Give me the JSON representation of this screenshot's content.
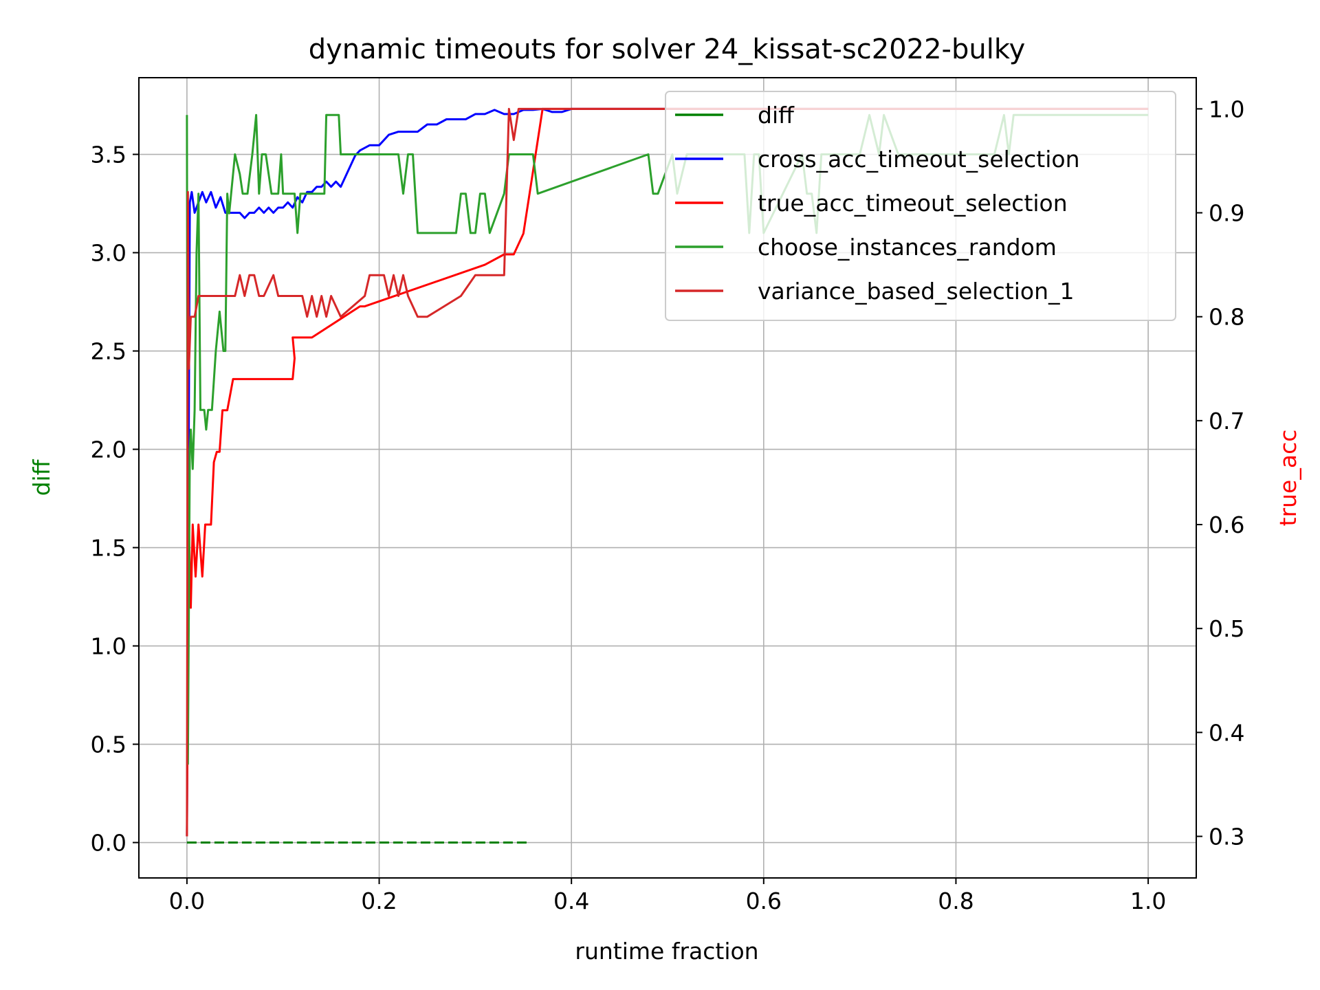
{
  "chart_data": {
    "type": "line",
    "title": "dynamic timeouts for solver 24_kissat-sc2022-bulky",
    "xlabel": "runtime fraction",
    "ylabel_left": "diff",
    "ylabel_right": "true_acc",
    "ylabel_left_color": "#008000",
    "ylabel_right_color": "#ff0000",
    "xlim": [
      -0.05,
      1.05
    ],
    "ylim_left": [
      -0.18,
      3.89
    ],
    "ylim_right": [
      0.26,
      1.03
    ],
    "x_ticks": [
      "0.0",
      "0.2",
      "0.4",
      "0.6",
      "0.8",
      "1.0"
    ],
    "y_left_ticks": [
      "0.0",
      "0.5",
      "1.0",
      "1.5",
      "2.0",
      "2.5",
      "3.0",
      "3.5"
    ],
    "y_right_ticks": [
      "0.3",
      "0.4",
      "0.5",
      "0.6",
      "0.7",
      "0.8",
      "0.9",
      "1.0"
    ],
    "grid": true,
    "legend_position": "top-right",
    "legend": [
      {
        "label": "diff",
        "color": "#008000"
      },
      {
        "label": "cross_acc_timeout_selection",
        "color": "#0000ff"
      },
      {
        "label": "true_acc_timeout_selection",
        "color": "#ff0000"
      },
      {
        "label": "choose_instances_random",
        "color": "#2ca02c"
      },
      {
        "label": "variance_based_selection_1",
        "color": "#d62728"
      }
    ],
    "series": [
      {
        "name": "diff",
        "axis": "left",
        "color": "#008000",
        "style": "dashed",
        "x": [
          0.0,
          0.25,
          0.34,
          0.355
        ],
        "y": [
          0.0,
          0.0,
          0.0,
          0.0
        ]
      },
      {
        "name": "cross_acc_timeout_selection",
        "axis": "right",
        "color": "#0000ff",
        "style": "solid",
        "x": [
          0.0,
          0.003,
          0.005,
          0.008,
          0.012,
          0.016,
          0.02,
          0.025,
          0.03,
          0.035,
          0.04,
          0.045,
          0.05,
          0.055,
          0.06,
          0.065,
          0.07,
          0.075,
          0.08,
          0.085,
          0.09,
          0.095,
          0.1,
          0.105,
          0.11,
          0.115,
          0.12,
          0.125,
          0.13,
          0.135,
          0.14,
          0.145,
          0.15,
          0.155,
          0.16,
          0.165,
          0.17,
          0.175,
          0.18,
          0.19,
          0.2,
          0.21,
          0.22,
          0.23,
          0.24,
          0.25,
          0.26,
          0.27,
          0.28,
          0.29,
          0.3,
          0.31,
          0.32,
          0.33,
          0.34,
          0.35,
          0.36,
          0.37,
          0.38,
          0.39,
          0.4,
          0.5,
          1.0
        ],
        "y": [
          0.3,
          0.91,
          0.92,
          0.9,
          0.91,
          0.92,
          0.91,
          0.92,
          0.905,
          0.915,
          0.9,
          0.9,
          0.9,
          0.9,
          0.895,
          0.9,
          0.9,
          0.905,
          0.9,
          0.905,
          0.9,
          0.905,
          0.905,
          0.91,
          0.905,
          0.915,
          0.91,
          0.92,
          0.92,
          0.925,
          0.925,
          0.93,
          0.925,
          0.93,
          0.925,
          0.935,
          0.945,
          0.955,
          0.96,
          0.965,
          0.965,
          0.975,
          0.978,
          0.978,
          0.978,
          0.985,
          0.985,
          0.99,
          0.99,
          0.99,
          0.995,
          0.995,
          0.999,
          0.995,
          0.995,
          0.999,
          0.999,
          1.0,
          0.997,
          0.997,
          1.0,
          1.0,
          1.0
        ]
      },
      {
        "name": "true_acc_timeout_selection",
        "axis": "right",
        "color": "#ff0000",
        "style": "solid",
        "x": [
          0.0,
          0.002,
          0.004,
          0.006,
          0.009,
          0.012,
          0.016,
          0.019,
          0.022,
          0.025,
          0.028,
          0.031,
          0.034,
          0.037,
          0.042,
          0.048,
          0.055,
          0.11,
          0.112,
          0.11,
          0.125,
          0.13,
          0.18,
          0.185,
          0.31,
          0.33,
          0.335,
          0.34,
          0.35,
          0.36,
          0.37,
          0.4,
          1.0
        ],
        "y": [
          0.3,
          0.6,
          0.52,
          0.6,
          0.55,
          0.6,
          0.55,
          0.6,
          0.6,
          0.6,
          0.66,
          0.67,
          0.67,
          0.71,
          0.71,
          0.74,
          0.74,
          0.74,
          0.76,
          0.78,
          0.78,
          0.78,
          0.81,
          0.81,
          0.85,
          0.86,
          0.86,
          0.86,
          0.88,
          0.94,
          1.0,
          1.0,
          1.0
        ]
      },
      {
        "name": "choose_instances_random",
        "axis": "left",
        "color": "#2ca02c",
        "style": "solid",
        "x": [
          0.0,
          0.001,
          0.002,
          0.003,
          0.004,
          0.006,
          0.008,
          0.01,
          0.012,
          0.014,
          0.016,
          0.018,
          0.02,
          0.022,
          0.026,
          0.03,
          0.034,
          0.038,
          0.04,
          0.042,
          0.044,
          0.05,
          0.055,
          0.058,
          0.063,
          0.068,
          0.072,
          0.075,
          0.078,
          0.082,
          0.088,
          0.095,
          0.098,
          0.1,
          0.112,
          0.115,
          0.118,
          0.12,
          0.143,
          0.145,
          0.158,
          0.16,
          0.22,
          0.225,
          0.23,
          0.235,
          0.24,
          0.26,
          0.28,
          0.285,
          0.29,
          0.295,
          0.3,
          0.305,
          0.31,
          0.315,
          0.33,
          0.335,
          0.36,
          0.365,
          0.48,
          0.485,
          0.49,
          0.505,
          0.51,
          0.52,
          0.58,
          0.585,
          0.59,
          0.595,
          0.6,
          0.64,
          0.645,
          0.65,
          0.655,
          0.66,
          0.7,
          0.71,
          0.72,
          0.725,
          0.74,
          0.84,
          0.85,
          0.855,
          0.86,
          1.0
        ],
        "y": [
          3.7,
          0.4,
          1.2,
          2.0,
          2.1,
          1.9,
          2.2,
          3.0,
          3.3,
          2.2,
          2.2,
          2.2,
          2.1,
          2.2,
          2.2,
          2.5,
          2.7,
          2.5,
          2.5,
          3.3,
          3.2,
          3.5,
          3.4,
          3.3,
          3.3,
          3.5,
          3.7,
          3.3,
          3.5,
          3.5,
          3.3,
          3.3,
          3.5,
          3.3,
          3.3,
          3.1,
          3.3,
          3.3,
          3.3,
          3.7,
          3.7,
          3.5,
          3.5,
          3.3,
          3.5,
          3.5,
          3.1,
          3.1,
          3.1,
          3.3,
          3.3,
          3.1,
          3.1,
          3.3,
          3.3,
          3.1,
          3.3,
          3.5,
          3.5,
          3.3,
          3.5,
          3.3,
          3.3,
          3.5,
          3.3,
          3.5,
          3.5,
          3.1,
          3.5,
          3.5,
          3.1,
          3.5,
          3.3,
          3.3,
          3.1,
          3.5,
          3.5,
          3.7,
          3.5,
          3.7,
          3.5,
          3.5,
          3.7,
          3.5,
          3.7,
          3.7
        ]
      },
      {
        "name": "variance_based_selection_1",
        "axis": "right",
        "color": "#d62728",
        "style": "solid",
        "x": [
          0.0,
          0.001,
          0.002,
          0.004,
          0.008,
          0.012,
          0.05,
          0.055,
          0.06,
          0.065,
          0.07,
          0.075,
          0.08,
          0.09,
          0.095,
          0.12,
          0.125,
          0.13,
          0.135,
          0.14,
          0.145,
          0.15,
          0.16,
          0.185,
          0.19,
          0.205,
          0.21,
          0.215,
          0.22,
          0.225,
          0.23,
          0.24,
          0.25,
          0.285,
          0.3,
          0.33,
          0.335,
          0.34,
          0.345,
          0.35,
          0.36,
          0.4,
          1.0
        ],
        "y": [
          0.3,
          0.92,
          0.75,
          0.8,
          0.8,
          0.82,
          0.82,
          0.84,
          0.82,
          0.84,
          0.84,
          0.82,
          0.82,
          0.84,
          0.82,
          0.82,
          0.8,
          0.82,
          0.8,
          0.82,
          0.8,
          0.82,
          0.8,
          0.82,
          0.84,
          0.84,
          0.82,
          0.84,
          0.82,
          0.84,
          0.82,
          0.8,
          0.8,
          0.82,
          0.84,
          0.84,
          1.0,
          0.97,
          1.0,
          1.0,
          1.0,
          1.0,
          1.0
        ]
      }
    ]
  }
}
